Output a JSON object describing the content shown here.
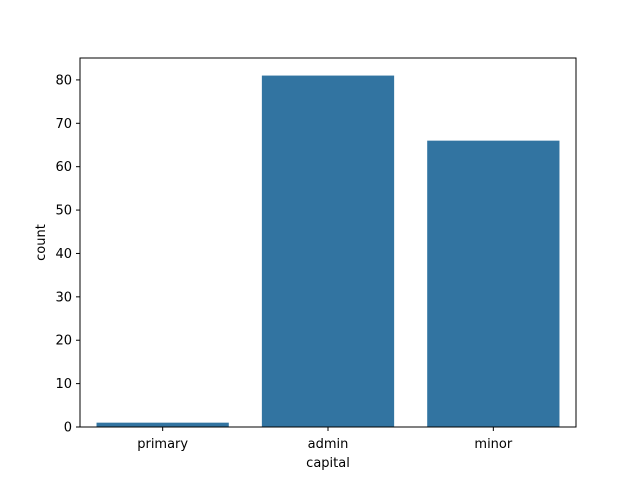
{
  "chart_data": {
    "type": "bar",
    "categories": [
      "primary",
      "admin",
      "minor"
    ],
    "values": [
      1,
      81,
      66
    ],
    "xlabel": "capital",
    "ylabel": "count",
    "ylim": [
      0,
      85.05
    ],
    "yticks": [
      0,
      10,
      20,
      30,
      40,
      50,
      60,
      70,
      80
    ],
    "bar_color": "#3274a1",
    "grid": false,
    "legend": "none"
  }
}
